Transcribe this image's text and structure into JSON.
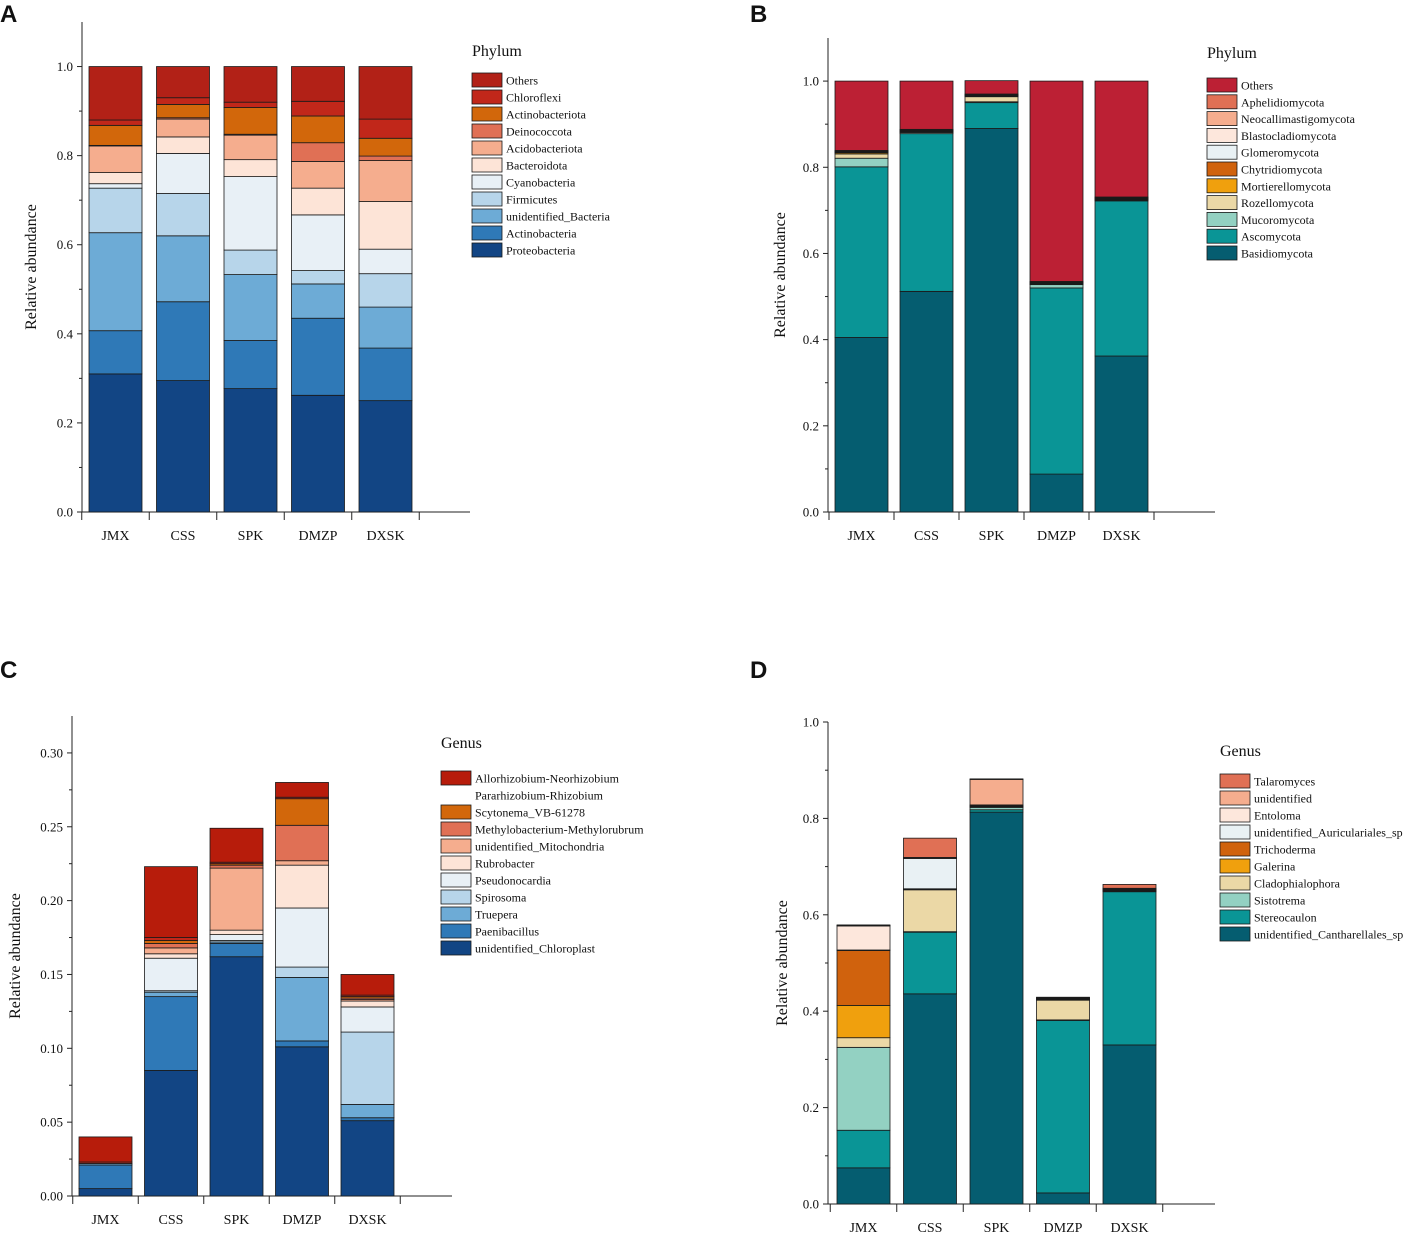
{
  "chart_data": [
    {
      "type": "bar",
      "stacked": true,
      "panel_label": "A",
      "categories": [
        "JMX",
        "CSS",
        "SPK",
        "DMZP",
        "DXSK"
      ],
      "ylabel": "Relative abundance",
      "ylim": [
        0,
        1.0
      ],
      "yticks": [
        "0.0",
        "0.2",
        "0.4",
        "0.6",
        "0.8",
        "1.0"
      ],
      "legend_title": "Phylum",
      "series": [
        {
          "name": "Proteobacteria",
          "color": "#124584",
          "values": [
            0.31,
            0.295,
            0.277,
            0.262,
            0.25
          ]
        },
        {
          "name": "Actinobacteria",
          "color": "#2f79b7",
          "values": [
            0.097,
            0.177,
            0.108,
            0.173,
            0.118
          ]
        },
        {
          "name": "unidentified_Bacteria",
          "color": "#6dabd6",
          "values": [
            0.22,
            0.148,
            0.148,
            0.077,
            0.092
          ]
        },
        {
          "name": "Firmicutes",
          "color": "#b7d5ea",
          "values": [
            0.1,
            0.095,
            0.055,
            0.03,
            0.075
          ]
        },
        {
          "name": "Cyanobacteria",
          "color": "#e8f0f6",
          "values": [
            0.01,
            0.09,
            0.165,
            0.125,
            0.055
          ]
        },
        {
          "name": "Bacteroidota",
          "color": "#fde4d7",
          "values": [
            0.025,
            0.037,
            0.038,
            0.06,
            0.107
          ]
        },
        {
          "name": "Acidobacteriota",
          "color": "#f5ad8e",
          "values": [
            0.06,
            0.04,
            0.055,
            0.06,
            0.092
          ]
        },
        {
          "name": "Deinococcota",
          "color": "#e07055",
          "values": [
            0.001,
            0.003,
            0.002,
            0.042,
            0.01
          ]
        },
        {
          "name": "Actinobacteriota",
          "color": "#d2670b",
          "values": [
            0.045,
            0.03,
            0.06,
            0.06,
            0.04
          ]
        },
        {
          "name": "Chloroflexi",
          "color": "#c1271a",
          "values": [
            0.012,
            0.015,
            0.012,
            0.033,
            0.043
          ]
        },
        {
          "name": "Others",
          "color": "#b22117",
          "values": [
            0.12,
            0.07,
            0.08,
            0.078,
            0.118
          ]
        }
      ]
    },
    {
      "type": "bar",
      "stacked": true,
      "panel_label": "B",
      "categories": [
        "JMX",
        "CSS",
        "SPK",
        "DMZP",
        "DXSK"
      ],
      "ylabel": "Relative abundance",
      "ylim": [
        0,
        1.0
      ],
      "yticks": [
        "0.0",
        "0.2",
        "0.4",
        "0.6",
        "0.8",
        "1.0"
      ],
      "legend_title": "Phylum",
      "series": [
        {
          "name": "Basidiomycota",
          "color": "#055d70",
          "values": [
            0.405,
            0.512,
            0.89,
            0.088,
            0.362
          ]
        },
        {
          "name": "Ascomycota",
          "color": "#0a9596",
          "values": [
            0.396,
            0.366,
            0.06,
            0.432,
            0.36
          ]
        },
        {
          "name": "Mucoromycota",
          "color": "#93d1c2",
          "values": [
            0.02,
            0.003,
            0.002,
            0.008,
            0.002
          ]
        },
        {
          "name": "Rozellomycota",
          "color": "#ebd8a6",
          "values": [
            0.01,
            0.001,
            0.012,
            0.001,
            0.001
          ]
        },
        {
          "name": "Mortierellomycota",
          "color": "#f0a00d",
          "values": [
            0.003,
            0.001,
            0.001,
            0.001,
            0.001
          ]
        },
        {
          "name": "Chytridiomycota",
          "color": "#d0620d",
          "values": [
            0.001,
            0.001,
            0.001,
            0.001,
            0.001
          ]
        },
        {
          "name": "Glomeromycota",
          "color": "#e9f1f4",
          "values": [
            0.001,
            0.001,
            0.001,
            0.001,
            0.001
          ]
        },
        {
          "name": "Blastocladiomycota",
          "color": "#fde7dc",
          "values": [
            0.001,
            0.001,
            0.001,
            0.001,
            0.001
          ]
        },
        {
          "name": "Neocallimastigomycota",
          "color": "#f5ad8e",
          "values": [
            0.001,
            0.001,
            0.001,
            0.001,
            0.001
          ]
        },
        {
          "name": "Aphelidiomycota",
          "color": "#e07055",
          "values": [
            0.001,
            0.001,
            0.001,
            0.001,
            0.001
          ]
        },
        {
          "name": "Others",
          "color": "#bc2034",
          "values": [
            0.161,
            0.112,
            0.031,
            0.465,
            0.269
          ]
        }
      ]
    },
    {
      "type": "bar",
      "stacked": true,
      "panel_label": "C",
      "categories": [
        "JMX",
        "CSS",
        "SPK",
        "DMZP",
        "DXSK"
      ],
      "ylabel": "Relative abundance",
      "ylim": [
        0,
        0.33
      ],
      "yticks": [
        "0.00",
        "0.05",
        "0.10",
        "0.15",
        "0.20",
        "0.25",
        "0.30"
      ],
      "legend_title": "Genus",
      "series": [
        {
          "name": "unidentified_Chloroplast",
          "color": "#124584",
          "values": [
            0.005,
            0.085,
            0.162,
            0.101,
            0.051
          ]
        },
        {
          "name": "Paenibacillus",
          "color": "#2f79b7",
          "values": [
            0.016,
            0.05,
            0.009,
            0.004,
            0.002
          ]
        },
        {
          "name": "Truepera",
          "color": "#6dabd6",
          "values": [
            0.001,
            0.003,
            0.001,
            0.043,
            0.009
          ]
        },
        {
          "name": "Spirosoma",
          "color": "#b7d5ea",
          "values": [
            0.0,
            0.001,
            0.001,
            0.007,
            0.049
          ]
        },
        {
          "name": "Pseudonocardia",
          "color": "#e8f0f6",
          "values": [
            0.0,
            0.022,
            0.004,
            0.04,
            0.017
          ]
        },
        {
          "name": "Rubrobacter",
          "color": "#fde4d7",
          "values": [
            0.0,
            0.003,
            0.003,
            0.029,
            0.004
          ]
        },
        {
          "name": "unidentified_Mitochondria",
          "color": "#f5ad8e",
          "values": [
            0.0,
            0.004,
            0.042,
            0.003,
            0.001
          ]
        },
        {
          "name": "Methylobacterium-Methylorubrum",
          "color": "#e07055",
          "values": [
            0.0,
            0.003,
            0.002,
            0.024,
            0.001
          ]
        },
        {
          "name": "Scytonema_VB-61278",
          "color": "#d2670b",
          "values": [
            0.0,
            0.002,
            0.001,
            0.018,
            0.001
          ]
        },
        {
          "name": "Pararhizobium-Rhizobium",
          "color": "#c1271a",
          "values": [
            0.001,
            0.002,
            0.001,
            0.001,
            0.001
          ]
        },
        {
          "name": "Allorhizobium-Neorhizobium",
          "color": "#b71c0b",
          "values": [
            0.017,
            0.048,
            0.023,
            0.01,
            0.014
          ]
        }
      ]
    },
    {
      "type": "bar",
      "stacked": true,
      "panel_label": "D",
      "categories": [
        "JMX",
        "CSS",
        "SPK",
        "DMZP",
        "DXSK"
      ],
      "ylabel": "Relative abundance",
      "ylim": [
        0,
        1.0
      ],
      "yticks": [
        "0.0",
        "0.2",
        "0.4",
        "0.6",
        "0.8",
        "1.0"
      ],
      "legend_title": "Genus",
      "series": [
        {
          "name": "unidentified_Cantharellales_sp",
          "color": "#055d70",
          "values": [
            0.075,
            0.436,
            0.813,
            0.023,
            0.33
          ]
        },
        {
          "name": "Stereocaulon",
          "color": "#0a9596",
          "values": [
            0.078,
            0.128,
            0.005,
            0.358,
            0.318
          ]
        },
        {
          "name": "Sistotrema",
          "color": "#93d1c2",
          "values": [
            0.172,
            0.001,
            0.005,
            0.001,
            0.001
          ]
        },
        {
          "name": "Cladophialophora",
          "color": "#ebd8a6",
          "values": [
            0.02,
            0.087,
            0.001,
            0.041,
            0.001
          ]
        },
        {
          "name": "Galerina",
          "color": "#f0a00d",
          "values": [
            0.067,
            0.001,
            0.001,
            0.001,
            0.001
          ]
        },
        {
          "name": "Trichoderma",
          "color": "#d0620d",
          "values": [
            0.114,
            0.001,
            0.001,
            0.001,
            0.001
          ]
        },
        {
          "name": "unidentified_Auriculariales_sp",
          "color": "#e9f1f4",
          "values": [
            0.001,
            0.063,
            0.001,
            0.001,
            0.001
          ]
        },
        {
          "name": "Entoloma",
          "color": "#fde7dc",
          "values": [
            0.05,
            0.001,
            0.001,
            0.001,
            0.001
          ]
        },
        {
          "name": "unidentified",
          "color": "#f5ad8e",
          "values": [
            0.001,
            0.001,
            0.053,
            0.001,
            0.001
          ]
        },
        {
          "name": "Talaromyces",
          "color": "#e07055",
          "values": [
            0.001,
            0.04,
            0.001,
            0.001,
            0.008
          ]
        }
      ]
    }
  ]
}
